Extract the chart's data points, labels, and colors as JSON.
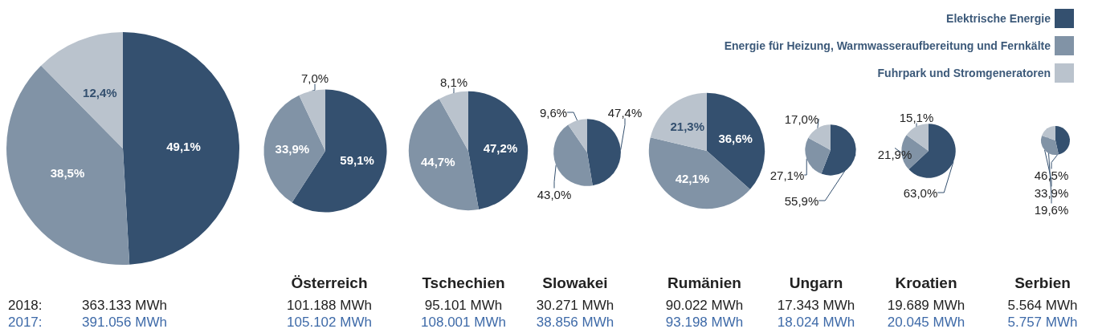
{
  "chart_data": [
    {
      "type": "pie",
      "title": null,
      "categories": [
        "Elektrische Energie",
        "Energie für Heizung, Warmwasseraufbereitung und Fernkälte",
        "Fuhrpark und Stromgeneratoren"
      ],
      "values": [
        49.1,
        38.5,
        12.4
      ],
      "colors": [
        "#34506f",
        "#8193a6",
        "#bac3cd"
      ],
      "value_labels": [
        "49,1%",
        "38,5%",
        "12,4%"
      ],
      "legend": "top right",
      "annotations": [
        "2018:",
        "363.133 MWh",
        "2017:",
        "391.056 MWh"
      ]
    },
    {
      "type": "pie",
      "title": "Österreich",
      "categories": [
        null,
        null,
        null
      ],
      "values": [
        59.1,
        33.9,
        7.0
      ],
      "colors": [
        "#34506f",
        "#8193a6",
        "#bac3cd"
      ],
      "value_labels": [
        "59,1%",
        "33,9%",
        "7,0%"
      ],
      "annotations": [
        "101.188 MWh",
        "105.102 MWh"
      ]
    },
    {
      "type": "pie",
      "title": "Tschechien",
      "categories": [
        null,
        null,
        null
      ],
      "values": [
        47.2,
        44.7,
        8.1
      ],
      "colors": [
        "#34506f",
        "#8193a6",
        "#bac3cd"
      ],
      "value_labels": [
        "47,2%",
        "44,7%",
        "8,1%"
      ],
      "annotations": [
        "95.101 MWh",
        "108.001 MWh"
      ]
    },
    {
      "type": "pie",
      "title": "Slowakei",
      "categories": [
        null,
        null,
        null
      ],
      "values": [
        47.4,
        43.0,
        9.6
      ],
      "colors": [
        "#34506f",
        "#8193a6",
        "#bac3cd"
      ],
      "value_labels": [
        "47,4%",
        "43,0%",
        "9,6%"
      ],
      "annotations": [
        "30.271 MWh",
        "38.856 MWh"
      ]
    },
    {
      "type": "pie",
      "title": "Rumänien",
      "categories": [
        null,
        null,
        null
      ],
      "values": [
        36.6,
        42.1,
        21.3
      ],
      "colors": [
        "#34506f",
        "#8193a6",
        "#bac3cd"
      ],
      "value_labels": [
        "36,6%",
        "42,1%",
        "21,3%"
      ],
      "annotations": [
        "90.022 MWh",
        "93.198 MWh"
      ]
    },
    {
      "type": "pie",
      "title": "Ungarn",
      "categories": [
        null,
        null,
        null
      ],
      "values": [
        55.9,
        27.1,
        17.0
      ],
      "colors": [
        "#34506f",
        "#8193a6",
        "#bac3cd"
      ],
      "value_labels": [
        "55,9%",
        "27,1%",
        "17,0%"
      ],
      "annotations": [
        "17.343 MWh",
        "18.024 MWh"
      ]
    },
    {
      "type": "pie",
      "title": "Kroatien",
      "categories": [
        null,
        null,
        null
      ],
      "values": [
        63.0,
        21.9,
        15.1
      ],
      "colors": [
        "#34506f",
        "#8193a6",
        "#bac3cd"
      ],
      "value_labels": [
        "63,0%",
        "21,9%",
        "15,1%"
      ],
      "annotations": [
        "19.689 MWh",
        "20.045 MWh"
      ]
    },
    {
      "type": "pie",
      "title": "Serbien",
      "categories": [
        null,
        null,
        null
      ],
      "values": [
        46.5,
        33.9,
        19.6
      ],
      "colors": [
        "#34506f",
        "#8193a6",
        "#bac3cd"
      ],
      "value_labels": [
        "46,5%",
        "33,9%",
        "19,6%"
      ],
      "annotations": [
        "5.564 MWh",
        "5.757 MWh"
      ]
    }
  ]
}
